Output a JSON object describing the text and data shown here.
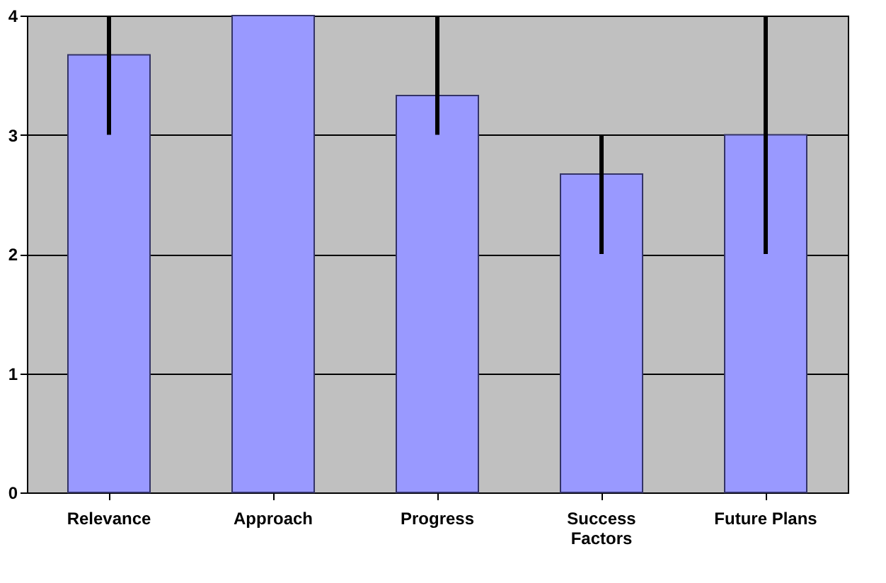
{
  "chart_data": {
    "type": "bar",
    "categories": [
      "Relevance",
      "Approach",
      "Progress",
      "Success Factors",
      "Future Plans"
    ],
    "values": [
      3.67,
      4,
      3.33,
      2.67,
      3
    ],
    "errors": [
      [
        3,
        4
      ],
      [
        4,
        4
      ],
      [
        3,
        4
      ],
      [
        2,
        3
      ],
      [
        2,
        4
      ]
    ],
    "color": "#9999ff",
    "ylim": [
      0,
      4
    ],
    "yticks": [
      0,
      1,
      2,
      3,
      4
    ],
    "grid": "y"
  }
}
